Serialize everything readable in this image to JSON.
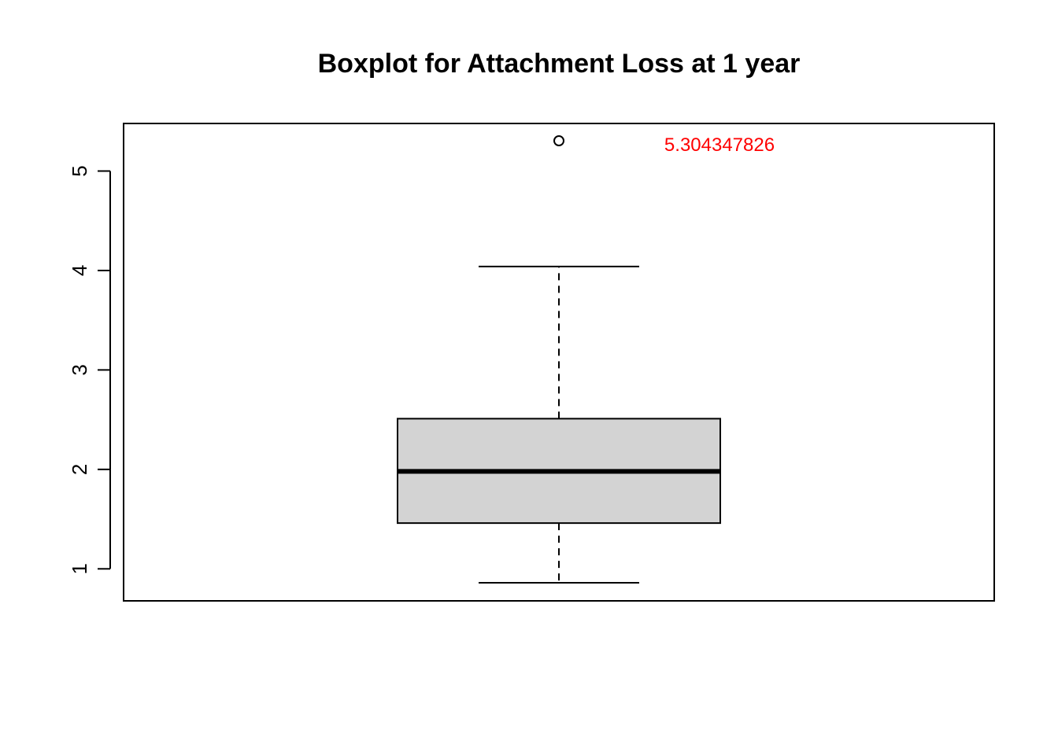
{
  "chart_data": {
    "type": "boxplot",
    "title": "Boxplot for Attachment Loss at 1 year",
    "xlabel": "",
    "ylabel": "",
    "ylim": [
      0.7,
      5.5
    ],
    "yticks": [
      1,
      2,
      3,
      4,
      5
    ],
    "grid": false,
    "box": {
      "whisker_low": 0.86,
      "q1": 1.46,
      "median": 1.98,
      "q3": 2.51,
      "whisker_high": 4.04,
      "outliers": [
        5.304347826
      ]
    },
    "box_fill": "#d3d3d3",
    "annotations": [
      {
        "text": "5.304347826",
        "x_offset_ratio": 0.0,
        "y": 5.28,
        "color": "#ff0000"
      }
    ]
  }
}
